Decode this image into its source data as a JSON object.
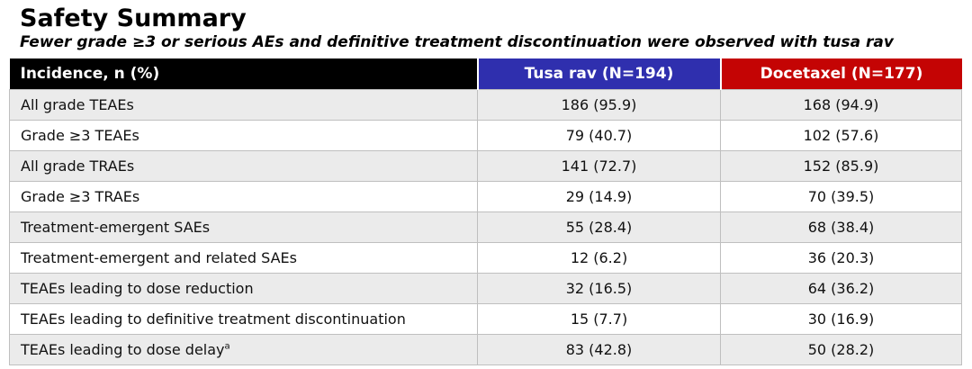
{
  "page": {
    "title": "Safety Summary",
    "subtitle": "Fewer grade ≥3 or serious AEs and definitive treatment discontinuation were observed with tusa rav"
  },
  "colors": {
    "header_incidence_bg": "#000000",
    "header_tusa_rav_bg": "#2f2fae",
    "header_docetaxel_bg": "#c40404",
    "header_text": "#ffffff",
    "zebra_row_bg": "#ebebeb",
    "row_border": "#bfbfbf"
  },
  "chart_data": {
    "type": "table",
    "title": "Safety Summary",
    "subtitle": "Fewer grade ≥3 or serious AEs and definitive treatment discontinuation were observed with tusa rav",
    "columns": [
      {
        "label": "Incidence, n (%)",
        "bg": "#000000"
      },
      {
        "label": "Tusa rav (N=194)",
        "bg": "#2f2fae"
      },
      {
        "label": "Docetaxel (N=177)",
        "bg": "#c40404"
      }
    ],
    "rows": [
      {
        "label": "All grade TEAEs",
        "sup": "",
        "tusa_rav": "186 (95.9)",
        "docetaxel": "168 (94.9)"
      },
      {
        "label": "Grade ≥3 TEAEs",
        "sup": "",
        "tusa_rav": "79 (40.7)",
        "docetaxel": "102 (57.6)"
      },
      {
        "label": "All grade TRAEs",
        "sup": "",
        "tusa_rav": "141 (72.7)",
        "docetaxel": "152 (85.9)"
      },
      {
        "label": "Grade ≥3 TRAEs",
        "sup": "",
        "tusa_rav": "29 (14.9)",
        "docetaxel": "70 (39.5)"
      },
      {
        "label": "Treatment-emergent SAEs",
        "sup": "",
        "tusa_rav": "55 (28.4)",
        "docetaxel": "68 (38.4)"
      },
      {
        "label": "Treatment-emergent and related SAEs",
        "sup": "",
        "tusa_rav": "12 (6.2)",
        "docetaxel": "36 (20.3)"
      },
      {
        "label": "TEAEs leading to dose reduction",
        "sup": "",
        "tusa_rav": "32 (16.5)",
        "docetaxel": "64 (36.2)"
      },
      {
        "label": "TEAEs leading to definitive treatment discontinuation",
        "sup": "",
        "tusa_rav": "15 (7.7)",
        "docetaxel": "30 (16.9)"
      },
      {
        "label": "TEAEs leading to dose delay",
        "sup": "a",
        "tusa_rav": "83 (42.8)",
        "docetaxel": "50 (28.2)"
      }
    ]
  }
}
